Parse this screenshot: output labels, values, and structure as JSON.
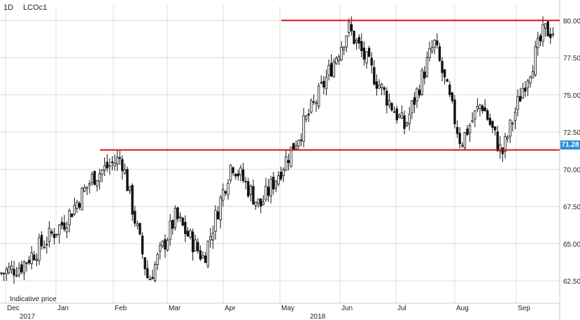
{
  "header": {
    "interval": "1D",
    "symbol": "LCOc1"
  },
  "note": "Indicative price",
  "last_price_tag": "71.28",
  "colors": {
    "level_line": "#e01010",
    "candle": "#111111",
    "grid": "#dcdcdc",
    "tag_bg": "#2f8fd6"
  },
  "chart_data": {
    "type": "candlestick",
    "title": "",
    "y_axis": {
      "min": 61.0,
      "max": 81.0,
      "ticks": [
        62.5,
        65.0,
        67.5,
        70.0,
        72.5,
        75.0,
        77.5,
        80.0
      ],
      "tick_labels": [
        "62.50",
        "65.00",
        "67.50",
        "70.00",
        "72.50",
        "75.00",
        "77.50",
        "80.00"
      ],
      "position": "right"
    },
    "x_axis": {
      "months": [
        "Dec",
        "Jan",
        "Feb",
        "Mar",
        "Apr",
        "May",
        "Jun",
        "Jul",
        "Aug",
        "Sep"
      ],
      "years": [
        "2017",
        "2018"
      ]
    },
    "horizontal_levels": [
      {
        "value": 80.0,
        "from": "May",
        "to": "end"
      },
      {
        "value": 71.3,
        "from": "Jan",
        "to": "end"
      }
    ],
    "close_path": [
      [
        "Dec",
        63.5
      ],
      [
        "Jan",
        66.5
      ],
      [
        "Jan",
        69.5
      ],
      [
        "Feb",
        70.8
      ],
      [
        "Feb",
        62.5
      ],
      [
        "Mar",
        66.8
      ],
      [
        "Mar",
        64.0
      ],
      [
        "Apr",
        70.5
      ],
      [
        "Apr",
        67.5
      ],
      [
        "May",
        71.0
      ],
      [
        "May",
        75.0
      ],
      [
        "Jun",
        79.5
      ],
      [
        "Jun",
        76.0
      ],
      [
        "Jul",
        72.8
      ],
      [
        "Jul",
        78.5
      ],
      [
        "Aug",
        71.8
      ],
      [
        "Aug",
        74.5
      ],
      [
        "Aug",
        71.0
      ],
      [
        "Sep",
        75.5
      ],
      [
        "Sep",
        79.3
      ]
    ]
  }
}
